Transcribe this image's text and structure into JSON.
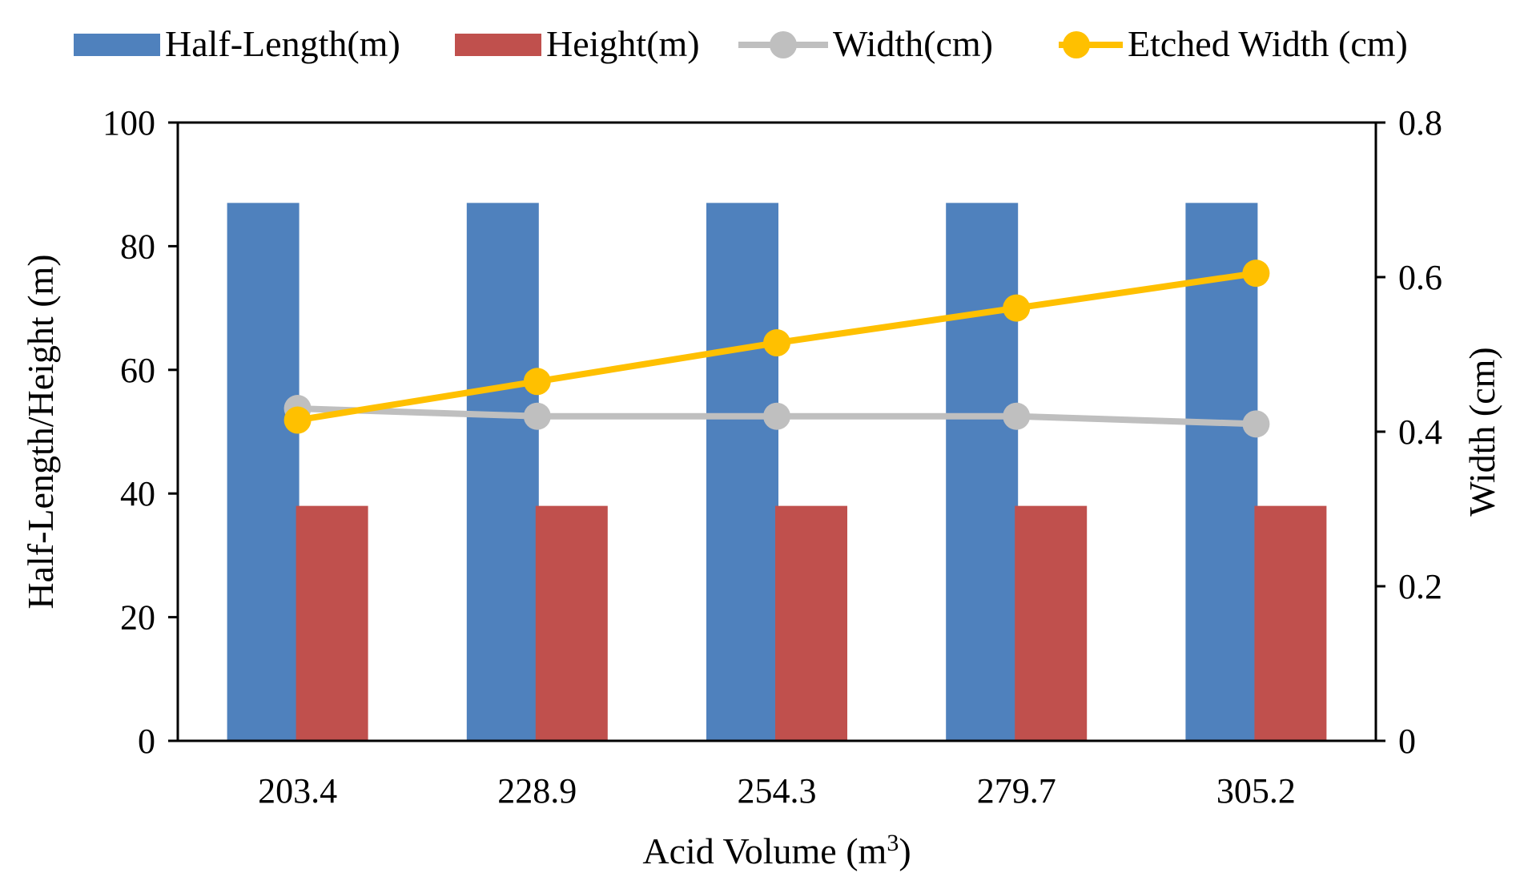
{
  "colors": {
    "half_length": "#4F81BD",
    "height": "#C0504D",
    "width": "#BFBFBF",
    "etched_width": "#FFC000",
    "axis": "#000000"
  },
  "chart_data": {
    "type": "bar",
    "title": "",
    "categories": [
      "203.4",
      "228.9",
      "254.3",
      "279.7",
      "305.2"
    ],
    "xlabel": "Acid Volume (m",
    "xlabel_sup": "3",
    "xlabel_close": ")",
    "ylabel": "Half-Length/Height (m)",
    "y2label": "Width (cm)",
    "ylim": [
      0,
      100
    ],
    "y2lim": [
      0,
      0.8
    ],
    "yticks": [
      "0",
      "20",
      "40",
      "60",
      "80",
      "100"
    ],
    "y2ticks": [
      "0",
      "0.2",
      "0.4",
      "0.6",
      "0.8"
    ],
    "legend_position": "top",
    "series": [
      {
        "name": "Half-Length(m)",
        "kind": "bar",
        "axis": "left",
        "values": [
          87,
          87,
          87,
          87,
          87
        ]
      },
      {
        "name": "Height(m)",
        "kind": "bar",
        "axis": "left",
        "values": [
          38,
          38,
          38,
          38,
          38
        ]
      },
      {
        "name": "Width(cm)",
        "kind": "line",
        "axis": "right",
        "values": [
          0.43,
          0.42,
          0.42,
          0.42,
          0.41
        ]
      },
      {
        "name": "Etched Width (cm)",
        "kind": "line",
        "axis": "right",
        "values": [
          0.415,
          0.465,
          0.515,
          0.56,
          0.605
        ]
      }
    ]
  }
}
